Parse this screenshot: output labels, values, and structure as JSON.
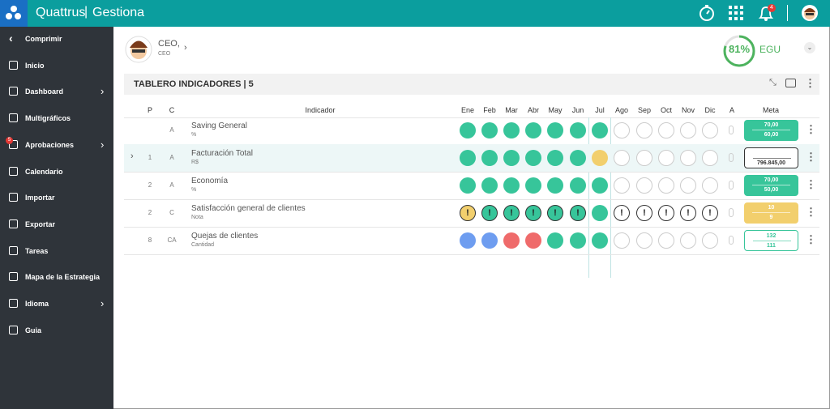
{
  "app": {
    "brand": "Quattrus",
    "product": "Gestiona",
    "notifications": "4"
  },
  "sidebar": {
    "items": [
      "Comprimir",
      "Inicio",
      "Dashboard",
      "Multigráficos",
      "Aprobaciones",
      "Calendario",
      "Importar",
      "Exportar",
      "Tareas",
      "Mapa de la Estrategia",
      "Idioma",
      "Guia"
    ],
    "approvals_badge": "5"
  },
  "user": {
    "name": "CEO,",
    "role": "CEO"
  },
  "progress": {
    "value": 81,
    "value_label": "81%",
    "unit": "EGU"
  },
  "panel": {
    "title": "TABLERO INDICADORES | 5"
  },
  "table": {
    "headers": [
      "P",
      "C",
      "Indicador",
      "Ene",
      "Feb",
      "Mar",
      "Abr",
      "May",
      "Jun",
      "Jul",
      "Ago",
      "Sep",
      "Oct",
      "Nov",
      "Dic",
      "A",
      "Meta"
    ],
    "rows": [
      {
        "p": "",
        "c": "A",
        "name": "Saving General",
        "unit": "%",
        "status": [
          "green",
          "green",
          "green",
          "green",
          "green",
          "green",
          "green",
          "empty",
          "empty",
          "empty",
          "empty",
          "empty"
        ],
        "meta": [
          "70,00",
          "60,00"
        ],
        "meta_style": "green"
      },
      {
        "p": "1",
        "c": "A",
        "name": "Facturación Total",
        "unit": "R$",
        "status": [
          "green",
          "green",
          "green",
          "green",
          "green",
          "green",
          "yellow",
          "empty",
          "empty",
          "empty",
          "empty",
          "empty"
        ],
        "meta": [
          "",
          "796.845,00"
        ],
        "meta_style": "outline"
      },
      {
        "p": "2",
        "c": "A",
        "name": "Economía",
        "unit": "%",
        "status": [
          "green",
          "green",
          "green",
          "green",
          "green",
          "green",
          "green",
          "empty",
          "empty",
          "empty",
          "empty",
          "empty"
        ],
        "meta": [
          "70,00",
          "50,00"
        ],
        "meta_style": "green"
      },
      {
        "p": "2",
        "c": "C",
        "name": "Satisfacción general de clientes",
        "unit": "Nota",
        "status": [
          "yellow-alert",
          "green-alert",
          "green-alert",
          "green-alert",
          "green-alert",
          "green-alert",
          "green",
          "empty-alert",
          "empty-alert",
          "empty-alert",
          "empty-alert",
          "empty-alert"
        ],
        "meta": [
          "10",
          "9"
        ],
        "meta_style": "yellow"
      },
      {
        "p": "8",
        "c": "CA",
        "name": "Quejas de clientes",
        "unit": "Cantidad",
        "status": [
          "blue",
          "blue",
          "red",
          "red",
          "green",
          "green",
          "green",
          "empty",
          "empty",
          "empty",
          "empty",
          "empty"
        ],
        "meta": [
          "132",
          "111"
        ],
        "meta_style": "outline-green"
      }
    ]
  }
}
